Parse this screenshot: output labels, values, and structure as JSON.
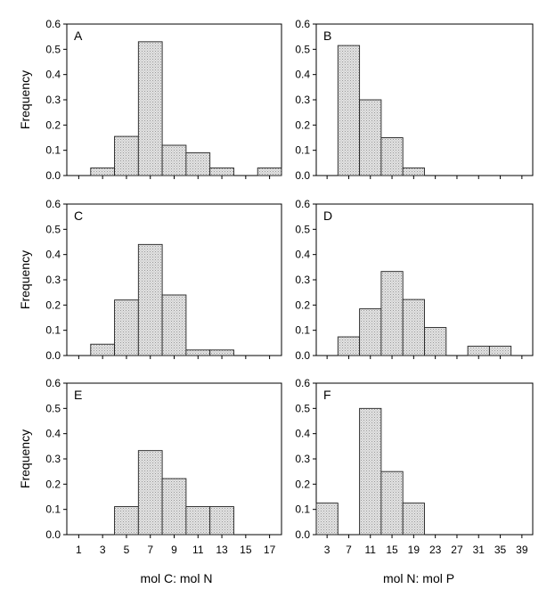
{
  "figure": {
    "x_axis_titles": {
      "left": "mol C: mol N",
      "right": "mol N: mol P"
    },
    "y_axis_title": "Frequency"
  },
  "chart_data": [
    {
      "panel": "A",
      "type": "bar",
      "ylabel": "Frequency",
      "xlabel": "",
      "ylim": [
        0,
        0.6
      ],
      "yticks": [
        "0.0",
        "0.1",
        "0.2",
        "0.3",
        "0.4",
        "0.5",
        "0.6"
      ],
      "xlim": [
        0,
        18
      ],
      "xticks": [
        "1",
        "3",
        "5",
        "7",
        "9",
        "11",
        "13",
        "15",
        "17"
      ],
      "bins": [
        [
          2,
          4
        ],
        [
          4,
          6
        ],
        [
          6,
          8
        ],
        [
          8,
          10
        ],
        [
          10,
          12
        ],
        [
          12,
          14
        ],
        [
          14,
          16
        ],
        [
          16,
          18
        ]
      ],
      "values": [
        0.03,
        0.155,
        0.53,
        0.12,
        0.09,
        0.03,
        0,
        0.03
      ]
    },
    {
      "panel": "B",
      "type": "bar",
      "ylabel": "",
      "xlabel": "",
      "ylim": [
        0,
        0.6
      ],
      "yticks": [
        "0.0",
        "0.1",
        "0.2",
        "0.3",
        "0.4",
        "0.5",
        "0.6"
      ],
      "xlim": [
        1,
        41
      ],
      "xticks": [
        "3",
        "7",
        "11",
        "15",
        "19",
        "23",
        "27",
        "31",
        "35",
        "39"
      ],
      "bins": [
        [
          5,
          9
        ],
        [
          9,
          13
        ],
        [
          13,
          17
        ],
        [
          17,
          21
        ]
      ],
      "values": [
        0.515,
        0.3,
        0.15,
        0.03
      ]
    },
    {
      "panel": "C",
      "type": "bar",
      "ylabel": "Frequency",
      "xlabel": "",
      "ylim": [
        0,
        0.6
      ],
      "yticks": [
        "0.0",
        "0.1",
        "0.2",
        "0.3",
        "0.4",
        "0.5",
        "0.6"
      ],
      "xlim": [
        0,
        18
      ],
      "xticks": [
        "1",
        "3",
        "5",
        "7",
        "9",
        "11",
        "13",
        "15",
        "17"
      ],
      "bins": [
        [
          2,
          4
        ],
        [
          4,
          6
        ],
        [
          6,
          8
        ],
        [
          8,
          10
        ],
        [
          10,
          12
        ],
        [
          12,
          14
        ]
      ],
      "values": [
        0.045,
        0.22,
        0.44,
        0.24,
        0.022,
        0.022
      ]
    },
    {
      "panel": "D",
      "type": "bar",
      "ylabel": "",
      "xlabel": "",
      "ylim": [
        0,
        0.6
      ],
      "yticks": [
        "0.0",
        "0.1",
        "0.2",
        "0.3",
        "0.4",
        "0.5",
        "0.6"
      ],
      "xlim": [
        1,
        41
      ],
      "xticks": [
        "3",
        "7",
        "11",
        "15",
        "19",
        "23",
        "27",
        "31",
        "35",
        "39"
      ],
      "bins": [
        [
          5,
          9
        ],
        [
          9,
          13
        ],
        [
          13,
          17
        ],
        [
          17,
          21
        ],
        [
          21,
          25
        ],
        [
          25,
          29
        ],
        [
          29,
          33
        ],
        [
          33,
          37
        ]
      ],
      "values": [
        0.074,
        0.185,
        0.333,
        0.222,
        0.111,
        0,
        0.037,
        0.037
      ]
    },
    {
      "panel": "E",
      "type": "bar",
      "ylabel": "Frequency",
      "xlabel": "mol C: mol N",
      "ylim": [
        0,
        0.6
      ],
      "yticks": [
        "0.0",
        "0.1",
        "0.2",
        "0.3",
        "0.4",
        "0.5",
        "0.6"
      ],
      "xlim": [
        0,
        18
      ],
      "xticks": [
        "1",
        "3",
        "5",
        "7",
        "9",
        "11",
        "13",
        "15",
        "17"
      ],
      "bins": [
        [
          4,
          6
        ],
        [
          6,
          8
        ],
        [
          8,
          10
        ],
        [
          10,
          12
        ],
        [
          12,
          14
        ]
      ],
      "values": [
        0.111,
        0.333,
        0.222,
        0.111,
        0.111
      ]
    },
    {
      "panel": "F",
      "type": "bar",
      "ylabel": "",
      "xlabel": "mol N: mol P",
      "ylim": [
        0,
        0.6
      ],
      "yticks": [
        "0.0",
        "0.1",
        "0.2",
        "0.3",
        "0.4",
        "0.5",
        "0.6"
      ],
      "xlim": [
        1,
        41
      ],
      "xticks": [
        "3",
        "7",
        "11",
        "15",
        "19",
        "23",
        "27",
        "31",
        "35",
        "39"
      ],
      "bins": [
        [
          1,
          5
        ],
        [
          5,
          9
        ],
        [
          9,
          13
        ],
        [
          13,
          17
        ],
        [
          17,
          21
        ]
      ],
      "values": [
        0.125,
        0,
        0.5,
        0.25,
        0.125
      ]
    }
  ]
}
